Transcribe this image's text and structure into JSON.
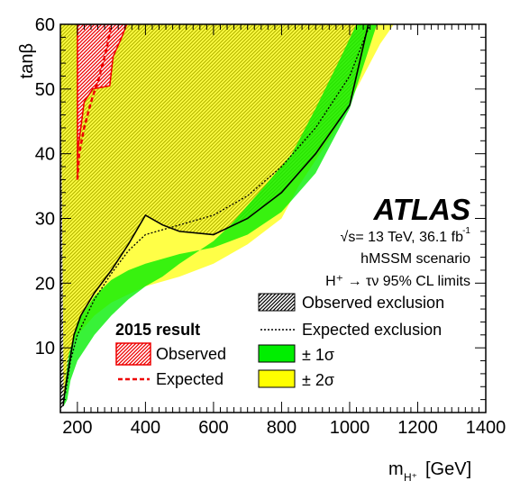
{
  "chart_data": {
    "type": "area",
    "xlabel": "m",
    "xlabel_sub": "H⁺",
    "xlabel_unit": "[GeV]",
    "ylabel": "tanβ",
    "xlim": [
      150,
      1400
    ],
    "ylim": [
      0,
      60
    ],
    "x_ticks": [
      200,
      400,
      600,
      800,
      1000,
      1200,
      1400
    ],
    "y_ticks": [
      10,
      20,
      30,
      40,
      50,
      60
    ],
    "experiment": "ATLAS",
    "energy_text": "√s= 13 TeV, 36.1 fb",
    "energy_exp": "-1",
    "scenario": "hMSSM scenario",
    "limits_text": "H⁺ → τν 95% CL limits",
    "legend": {
      "observed": "Observed exclusion",
      "expected": "Expected exclusion",
      "sigma1": "± 1σ",
      "sigma2": "± 2σ"
    },
    "legend_2015": {
      "title": "2015 result",
      "observed": "Observed",
      "expected": "Expected"
    },
    "colors": {
      "sigma1": "#00ee00",
      "sigma2": "#ffff00",
      "previous": "#ee0000"
    },
    "sigma2_upper": [
      [
        150,
        60
      ],
      [
        253,
        60
      ],
      [
        400,
        60
      ],
      [
        550,
        60
      ],
      [
        700,
        60
      ],
      [
        850,
        60
      ],
      [
        1000,
        60
      ],
      [
        1130,
        60
      ],
      [
        1090,
        57
      ],
      [
        1020,
        50
      ],
      [
        950,
        43
      ],
      [
        850,
        35
      ],
      [
        800,
        30
      ],
      [
        700,
        26
      ],
      [
        600,
        23
      ],
      [
        500,
        21
      ],
      [
        400,
        19.5
      ],
      [
        300,
        17
      ],
      [
        250,
        15
      ],
      [
        200,
        12
      ],
      [
        180,
        10
      ],
      [
        170,
        8
      ],
      [
        165,
        4
      ],
      [
        160,
        1
      ]
    ],
    "sigma1": [
      [
        160,
        1
      ],
      [
        165,
        5
      ],
      [
        175,
        9
      ],
      [
        200,
        14
      ],
      [
        250,
        18
      ],
      [
        300,
        20.5
      ],
      [
        350,
        22
      ],
      [
        400,
        23
      ],
      [
        500,
        24.5
      ],
      [
        600,
        25.5
      ],
      [
        700,
        27.5
      ],
      [
        800,
        31
      ],
      [
        900,
        37
      ],
      [
        1000,
        47
      ],
      [
        1080,
        60
      ],
      [
        1020,
        60
      ],
      [
        975,
        55
      ],
      [
        900,
        47
      ],
      [
        830,
        40
      ],
      [
        750,
        35
      ],
      [
        700,
        32
      ],
      [
        650,
        29
      ],
      [
        600,
        26.5
      ],
      [
        500,
        23
      ],
      [
        450,
        21
      ],
      [
        400,
        19.5
      ],
      [
        350,
        17.5
      ],
      [
        300,
        15
      ],
      [
        250,
        12
      ],
      [
        200,
        8
      ],
      [
        180,
        5
      ],
      [
        170,
        2
      ]
    ],
    "expected": [
      [
        165,
        3
      ],
      [
        180,
        8
      ],
      [
        200,
        12
      ],
      [
        250,
        17.5
      ],
      [
        300,
        21.5
      ],
      [
        350,
        25
      ],
      [
        400,
        27.5
      ],
      [
        500,
        29
      ],
      [
        600,
        30.5
      ],
      [
        700,
        33.5
      ],
      [
        800,
        38
      ],
      [
        900,
        44
      ],
      [
        1000,
        52
      ],
      [
        1060,
        60
      ]
    ],
    "observed": [
      [
        158,
        1
      ],
      [
        165,
        4
      ],
      [
        175,
        7
      ],
      [
        190,
        12
      ],
      [
        210,
        15
      ],
      [
        250,
        18.5
      ],
      [
        300,
        22
      ],
      [
        350,
        26
      ],
      [
        400,
        30.5
      ],
      [
        450,
        29
      ],
      [
        500,
        28
      ],
      [
        600,
        27.5
      ],
      [
        700,
        30
      ],
      [
        800,
        34
      ],
      [
        900,
        40
      ],
      [
        1000,
        47.5
      ],
      [
        1055,
        60
      ]
    ],
    "previous_observed": [
      [
        200,
        36
      ],
      [
        200,
        40
      ],
      [
        210,
        44
      ],
      [
        220,
        48
      ],
      [
        245,
        50
      ],
      [
        295,
        50.5
      ],
      [
        305,
        55
      ],
      [
        330,
        58
      ],
      [
        345,
        60
      ],
      [
        200,
        60
      ]
    ],
    "previous_expected": [
      [
        200,
        36
      ],
      [
        205,
        40
      ],
      [
        220,
        44
      ],
      [
        240,
        48
      ],
      [
        265,
        52
      ],
      [
        285,
        56
      ],
      [
        300,
        60
      ]
    ]
  }
}
